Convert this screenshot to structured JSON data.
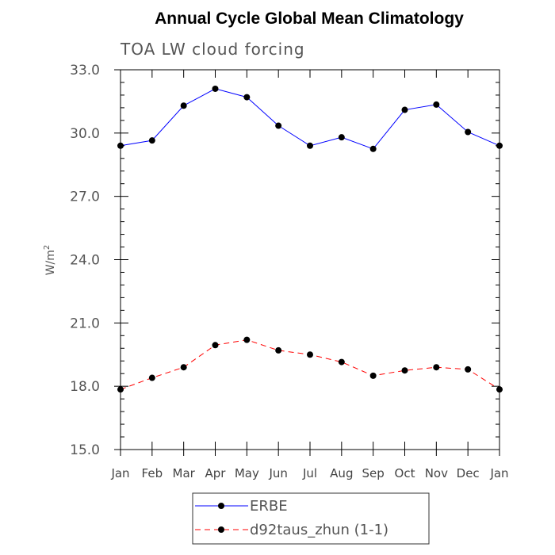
{
  "chart_data": {
    "type": "line",
    "title": "Annual Cycle Global Mean Climatology",
    "subtitle": "TOA LW cloud forcing",
    "ylabel": "W/m",
    "ylabel_superscript": "2",
    "xlabel": "",
    "ylim": [
      15.0,
      33.0
    ],
    "yticks": [
      "15.0",
      "18.0",
      "21.0",
      "24.0",
      "27.0",
      "30.0",
      "33.0"
    ],
    "yticks_values": [
      15.0,
      18.0,
      21.0,
      24.0,
      27.0,
      30.0,
      33.0
    ],
    "categories": [
      "Jan",
      "Feb",
      "Mar",
      "Apr",
      "May",
      "Jun",
      "Jul",
      "Aug",
      "Sep",
      "Oct",
      "Nov",
      "Dec",
      "Jan"
    ],
    "series": [
      {
        "name": "ERBE",
        "color": "#0000ff",
        "style": "solid",
        "values": [
          29.4,
          29.65,
          31.3,
          32.1,
          31.7,
          30.35,
          29.4,
          29.8,
          29.25,
          31.1,
          31.35,
          30.05,
          29.4
        ]
      },
      {
        "name": "d92taus_zhun (1-1)",
        "color": "#ff0000",
        "style": "dashed",
        "values": [
          17.85,
          18.4,
          18.9,
          19.95,
          20.2,
          19.7,
          19.5,
          19.15,
          18.5,
          18.75,
          18.9,
          18.8,
          17.85
        ]
      }
    ],
    "legend_position": "bottom-center",
    "grid": false
  }
}
